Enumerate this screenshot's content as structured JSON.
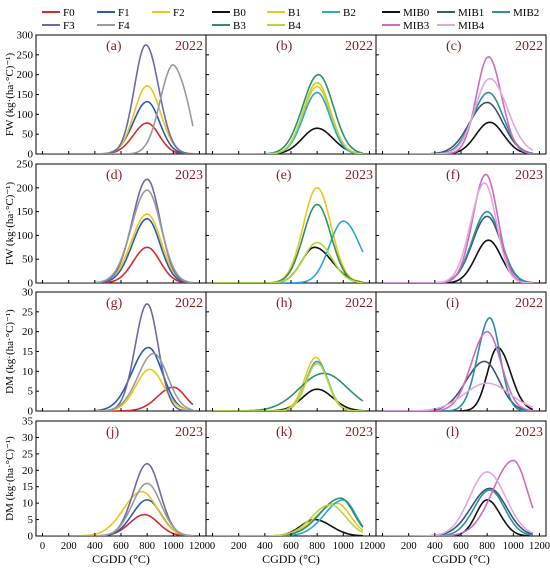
{
  "chart_data": [
    {
      "panel": "(a)",
      "year": "2022",
      "type": "line",
      "legend_group": "F",
      "series": [
        {
          "name": "F0",
          "peak_x": 800,
          "peak_y": 78,
          "w_left": 150,
          "w_right": 130
        },
        {
          "name": "F1",
          "peak_x": 800,
          "peak_y": 132,
          "w_left": 150,
          "w_right": 135
        },
        {
          "name": "F2",
          "peak_x": 800,
          "peak_y": 172,
          "w_left": 140,
          "w_right": 145
        },
        {
          "name": "F3",
          "peak_x": 790,
          "peak_y": 275,
          "w_left": 125,
          "w_right": 140
        },
        {
          "name": "F4",
          "peak_x": 1000,
          "peak_y": 225,
          "w_left": 140,
          "w_right": 160,
          "end_x": 1150,
          "end_y": 70
        }
      ]
    },
    {
      "panel": "(b)",
      "year": "2022",
      "type": "line",
      "legend_group": "B",
      "series": [
        {
          "name": "B0",
          "peak_x": 800,
          "peak_y": 65,
          "w_left": 160,
          "w_right": 170
        },
        {
          "name": "B1",
          "peak_x": 800,
          "peak_y": 170,
          "w_left": 150,
          "w_right": 140
        },
        {
          "name": "B2",
          "peak_x": 800,
          "peak_y": 155,
          "w_left": 150,
          "w_right": 140
        },
        {
          "name": "B3",
          "peak_x": 810,
          "peak_y": 200,
          "w_left": 170,
          "w_right": 160
        },
        {
          "name": "B4",
          "peak_x": 800,
          "peak_y": 180,
          "w_left": 150,
          "w_right": 145
        }
      ]
    },
    {
      "panel": "(c)",
      "year": "2022",
      "type": "line",
      "legend_group": "MIB",
      "series": [
        {
          "name": "MIB0",
          "peak_x": 820,
          "peak_y": 80,
          "w_left": 150,
          "w_right": 150
        },
        {
          "name": "MIB1",
          "peak_x": 800,
          "peak_y": 130,
          "w_left": 190,
          "w_right": 170
        },
        {
          "name": "MIB2",
          "peak_x": 810,
          "peak_y": 155,
          "w_left": 170,
          "w_right": 160
        },
        {
          "name": "MIB3",
          "peak_x": 810,
          "peak_y": 245,
          "w_left": 130,
          "w_right": 140
        },
        {
          "name": "MIB4",
          "peak_x": 820,
          "peak_y": 190,
          "w_left": 160,
          "w_right": 190
        }
      ]
    },
    {
      "panel": "(d)",
      "year": "2023",
      "type": "line",
      "legend_group": "F",
      "series": [
        {
          "name": "F0",
          "peak_x": 800,
          "peak_y": 75,
          "w_left": 150,
          "w_right": 140
        },
        {
          "name": "F1",
          "peak_x": 800,
          "peak_y": 135,
          "w_left": 160,
          "w_right": 140
        },
        {
          "name": "F2",
          "peak_x": 800,
          "peak_y": 145,
          "w_left": 170,
          "w_right": 150
        },
        {
          "name": "F3",
          "peak_x": 800,
          "peak_y": 218,
          "w_left": 160,
          "w_right": 140
        },
        {
          "name": "F4",
          "peak_x": 800,
          "peak_y": 195,
          "w_left": 170,
          "w_right": 150
        }
      ]
    },
    {
      "panel": "(e)",
      "year": "2023",
      "type": "line",
      "legend_group": "B",
      "series": [
        {
          "name": "B0",
          "peak_x": 780,
          "peak_y": 75,
          "w_left": 140,
          "w_right": 190
        },
        {
          "name": "B1",
          "peak_x": 800,
          "peak_y": 200,
          "w_left": 150,
          "w_right": 150
        },
        {
          "name": "B2",
          "peak_x": 1000,
          "peak_y": 130,
          "w_left": 150,
          "w_right": 180
        },
        {
          "name": "B3",
          "peak_x": 800,
          "peak_y": 165,
          "w_left": 150,
          "w_right": 150
        },
        {
          "name": "B4",
          "peak_x": 800,
          "peak_y": 85,
          "w_left": 150,
          "w_right": 160
        }
      ]
    },
    {
      "panel": "(f)",
      "year": "2023",
      "type": "line",
      "legend_group": "MIB",
      "series": [
        {
          "name": "MIB0",
          "peak_x": 810,
          "peak_y": 90,
          "w_left": 140,
          "w_right": 140
        },
        {
          "name": "MIB1",
          "peak_x": 800,
          "peak_y": 140,
          "w_left": 160,
          "w_right": 150
        },
        {
          "name": "MIB2",
          "peak_x": 800,
          "peak_y": 150,
          "w_left": 160,
          "w_right": 150
        },
        {
          "name": "MIB3",
          "peak_x": 790,
          "peak_y": 228,
          "w_left": 140,
          "w_right": 130
        },
        {
          "name": "MIB4",
          "peak_x": 780,
          "peak_y": 210,
          "w_left": 150,
          "w_right": 130
        }
      ]
    },
    {
      "panel": "(g)",
      "year": "2022",
      "type": "line",
      "legend_group": "F",
      "series": [
        {
          "name": "F0",
          "peak_x": 1000,
          "peak_y": 6,
          "w_left": 170,
          "w_right": 130
        },
        {
          "name": "F1",
          "peak_x": 810,
          "peak_y": 16,
          "w_left": 180,
          "w_right": 150
        },
        {
          "name": "F2",
          "peak_x": 820,
          "peak_y": 10.5,
          "w_left": 150,
          "w_right": 150
        },
        {
          "name": "F3",
          "peak_x": 800,
          "peak_y": 27,
          "w_left": 130,
          "w_right": 120
        },
        {
          "name": "F4",
          "peak_x": 850,
          "peak_y": 14.5,
          "w_left": 170,
          "w_right": 150
        }
      ]
    },
    {
      "panel": "(h)",
      "year": "2022",
      "type": "line",
      "legend_group": "B",
      "series": [
        {
          "name": "B0",
          "peak_x": 800,
          "peak_y": 5.5,
          "w_left": 160,
          "w_right": 170
        },
        {
          "name": "B1",
          "peak_x": 790,
          "peak_y": 13.5,
          "w_left": 120,
          "w_right": 120
        },
        {
          "name": "B2",
          "peak_x": 800,
          "peak_y": 12.5,
          "w_left": 120,
          "w_right": 120
        },
        {
          "name": "B3",
          "peak_x": 850,
          "peak_y": 9.5,
          "w_left": 260,
          "w_right": 260
        },
        {
          "name": "B4",
          "peak_x": 800,
          "peak_y": 12,
          "w_left": 120,
          "w_right": 120
        }
      ]
    },
    {
      "panel": "(i)",
      "year": "2022",
      "type": "line",
      "legend_group": "MIB",
      "series": [
        {
          "name": "MIB0",
          "peak_x": 880,
          "peak_y": 16,
          "w_left": 110,
          "w_right": 140
        },
        {
          "name": "MIB1",
          "peak_x": 780,
          "peak_y": 12.5,
          "w_left": 200,
          "w_right": 160
        },
        {
          "name": "MIB2",
          "peak_x": 820,
          "peak_y": 23.5,
          "w_left": 130,
          "w_right": 110
        },
        {
          "name": "MIB3",
          "peak_x": 800,
          "peak_y": 20,
          "w_left": 170,
          "w_right": 150
        },
        {
          "name": "MIB4",
          "peak_x": 800,
          "peak_y": 7,
          "w_left": 250,
          "w_right": 250
        }
      ]
    },
    {
      "panel": "(j)",
      "year": "2023",
      "type": "line",
      "legend_group": "F",
      "series": [
        {
          "name": "F0",
          "peak_x": 780,
          "peak_y": 6.5,
          "w_left": 160,
          "w_right": 150
        },
        {
          "name": "F1",
          "peak_x": 800,
          "peak_y": 11,
          "w_left": 160,
          "w_right": 150
        },
        {
          "name": "F2",
          "peak_x": 760,
          "peak_y": 13.5,
          "w_left": 200,
          "w_right": 170
        },
        {
          "name": "F3",
          "peak_x": 800,
          "peak_y": 22,
          "w_left": 150,
          "w_right": 140
        },
        {
          "name": "F4",
          "peak_x": 800,
          "peak_y": 16,
          "w_left": 160,
          "w_right": 150
        }
      ]
    },
    {
      "panel": "(k)",
      "year": "2023",
      "type": "line",
      "legend_group": "B",
      "series": [
        {
          "name": "B0",
          "peak_x": 780,
          "peak_y": 5,
          "w_left": 150,
          "w_right": 180
        },
        {
          "name": "B1",
          "peak_x": 950,
          "peak_y": 10,
          "w_left": 220,
          "w_right": 150
        },
        {
          "name": "B2",
          "peak_x": 1000,
          "peak_y": 11,
          "w_left": 200,
          "w_right": 130
        },
        {
          "name": "B3",
          "peak_x": 980,
          "peak_y": 11.5,
          "w_left": 220,
          "w_right": 140
        },
        {
          "name": "B4",
          "peak_x": 900,
          "peak_y": 9.5,
          "w_left": 200,
          "w_right": 170
        }
      ]
    },
    {
      "panel": "(l)",
      "year": "2023",
      "type": "line",
      "legend_group": "MIB",
      "series": [
        {
          "name": "MIB0",
          "peak_x": 800,
          "peak_y": 11,
          "w_left": 120,
          "w_right": 140
        },
        {
          "name": "MIB1",
          "peak_x": 820,
          "peak_y": 14.5,
          "w_left": 200,
          "w_right": 180
        },
        {
          "name": "MIB2",
          "peak_x": 820,
          "peak_y": 14,
          "w_left": 170,
          "w_right": 160
        },
        {
          "name": "MIB3",
          "peak_x": 1000,
          "peak_y": 23,
          "w_left": 220,
          "w_right": 150
        },
        {
          "name": "MIB4",
          "peak_x": 800,
          "peak_y": 19.5,
          "w_left": 190,
          "w_right": 200
        }
      ]
    }
  ],
  "legend": {
    "F": [
      {
        "name": "F0",
        "color": "#d02d2d"
      },
      {
        "name": "F1",
        "color": "#2a5ca8"
      },
      {
        "name": "F2",
        "color": "#e8c81c"
      },
      {
        "name": "F3",
        "color": "#6a6aa8"
      },
      {
        "name": "F4",
        "color": "#9a9a9a"
      }
    ],
    "B": [
      {
        "name": "B0",
        "color": "#111111"
      },
      {
        "name": "B1",
        "color": "#e8c81c"
      },
      {
        "name": "B2",
        "color": "#2aa6d8"
      },
      {
        "name": "B3",
        "color": "#2f8f6a"
      },
      {
        "name": "B4",
        "color": "#b6d63a"
      }
    ],
    "MIB": [
      {
        "name": "MIB0",
        "color": "#111111"
      },
      {
        "name": "MIB1",
        "color": "#3a5570"
      },
      {
        "name": "MIB2",
        "color": "#2a8fa0"
      },
      {
        "name": "MIB3",
        "color": "#d06ac0"
      },
      {
        "name": "MIB4",
        "color": "#e0a8e0"
      }
    ]
  },
  "rows": [
    {
      "ylabel": "FW (kg·(ha·°C)⁻¹)",
      "ylim": [
        0,
        300
      ],
      "ticks": [
        0,
        50,
        100,
        150,
        200,
        250,
        300
      ],
      "tick_labels": [
        "0",
        "50",
        "100",
        "150",
        "200",
        "250",
        "300"
      ]
    },
    {
      "ylabel": "FW (kg·(ha·°C)⁻¹)",
      "ylim": [
        0,
        250
      ],
      "ticks": [
        0,
        50,
        100,
        150,
        200,
        250
      ],
      "tick_labels": [
        "0",
        "50",
        "100",
        "150",
        "200",
        "250"
      ]
    },
    {
      "ylabel": "DM (kg·(ha·°C)⁻¹)",
      "ylim": [
        0,
        30
      ],
      "ticks": [
        0,
        5,
        10,
        15,
        20,
        25,
        30
      ],
      "tick_labels": [
        "0",
        "5",
        "10",
        "15",
        "20",
        "25",
        "30"
      ]
    },
    {
      "ylabel": "DM (kg·(ha·°C)⁻¹)",
      "ylim": [
        0,
        35
      ],
      "ticks": [
        0,
        5,
        10,
        15,
        20,
        25,
        30,
        35
      ],
      "tick_labels": [
        "0",
        "5",
        "10",
        "15",
        "20",
        "25",
        "30",
        "35"
      ]
    }
  ],
  "xaxis": {
    "label": "CGDD (°C)",
    "xlim": [
      -50,
      1250
    ],
    "ticks": [
      0,
      200,
      400,
      600,
      800,
      1000,
      1200
    ],
    "tick_labels": [
      "0",
      "200",
      "400",
      "600",
      "800",
      "1000",
      "1200"
    ]
  }
}
